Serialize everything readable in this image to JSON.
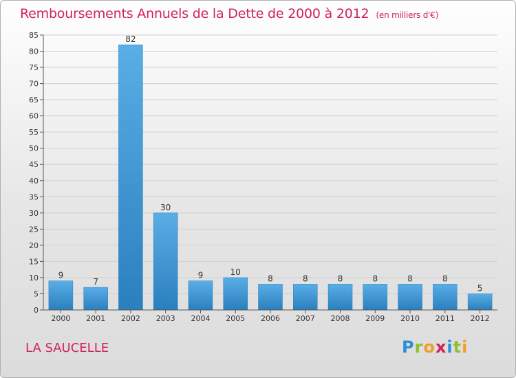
{
  "chart_data": {
    "type": "bar",
    "title": "Remboursements Annuels de la Dette de 2000 à 2012",
    "subtitle": "(en milliers d'€)",
    "categories": [
      "2000",
      "2001",
      "2002",
      "2003",
      "2004",
      "2005",
      "2006",
      "2007",
      "2008",
      "2009",
      "2010",
      "2011",
      "2012"
    ],
    "values": [
      9,
      7,
      82,
      30,
      9,
      10,
      8,
      8,
      8,
      8,
      8,
      8,
      5
    ],
    "ylim": [
      0,
      85
    ],
    "yticks": [
      0,
      5,
      10,
      15,
      20,
      25,
      30,
      35,
      40,
      45,
      50,
      55,
      60,
      65,
      70,
      75,
      80,
      85
    ],
    "xlabel": "",
    "ylabel": "",
    "grid": true
  },
  "commune": "LA SAUCELLE",
  "logo": {
    "letters": [
      "P",
      "r",
      "o",
      "x",
      "i",
      "t",
      "i"
    ],
    "colors": [
      "#2a8fd6",
      "#8fbf2a",
      "#f0a020",
      "#d2225a",
      "#2a8fd6",
      "#8fbf2a",
      "#f0a020"
    ]
  },
  "colors": {
    "accent": "#d2225a",
    "bar_top": "#5aaee6",
    "bar_bottom": "#2a7fbe"
  }
}
